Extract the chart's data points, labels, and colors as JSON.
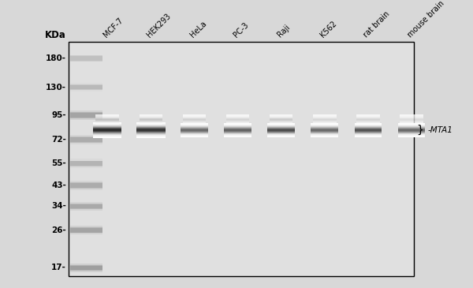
{
  "background_color": "#d8d8d8",
  "gel_background": "#e0e0e0",
  "border_color": "#000000",
  "kda_labels": [
    "180-",
    "130-",
    "95-",
    "72-",
    "55-",
    "43-",
    "34-",
    "26-",
    "17-"
  ],
  "kda_values": [
    180,
    130,
    95,
    72,
    55,
    43,
    34,
    26,
    17
  ],
  "lane_labels": [
    "MCF-7",
    "HEK293",
    "HeLa",
    "PC-3",
    "Raji",
    "K562",
    "rat brain",
    "mouse brain"
  ],
  "band_annotation": "} -MTA1",
  "ladder_bands_kda": [
    180,
    130,
    95,
    72,
    55,
    43,
    34,
    26,
    17
  ],
  "ladder_intensities": [
    0.38,
    0.42,
    0.55,
    0.5,
    0.45,
    0.5,
    0.52,
    0.55,
    0.58
  ],
  "main_band_kda": 80,
  "sample_intensities": [
    0.92,
    0.88,
    0.65,
    0.68,
    0.78,
    0.65,
    0.75,
    0.65
  ],
  "secondary_band_kda": 90,
  "secondary_lanes": [
    0,
    1,
    2,
    3,
    4,
    5,
    6,
    7
  ],
  "secondary_intensities": [
    0.3,
    0.28,
    0.22,
    0.2,
    0.25,
    0.18,
    0.2,
    0.15
  ]
}
